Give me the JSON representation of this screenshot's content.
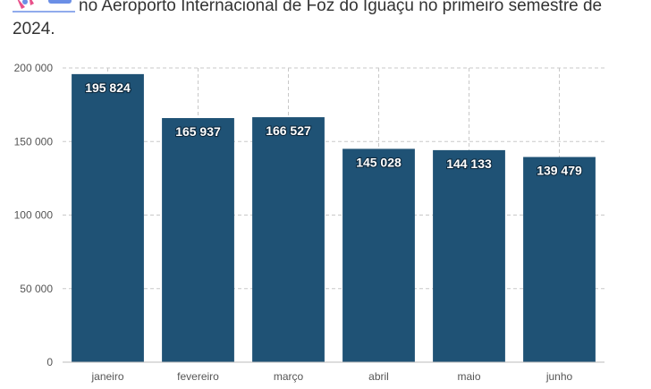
{
  "title": {
    "text": "no Aeroporto Internacional de Foz do Iguaçu no primeiro semestre de 2024."
  },
  "colors": {
    "bar": "#1f5275",
    "grid": "#c8c8c8",
    "icon_pink": "#e8508a",
    "icon_blue": "#6b8fe6"
  },
  "chart_data": {
    "type": "bar",
    "categories": [
      "janeiro",
      "fevereiro",
      "março",
      "abril",
      "maio",
      "junho"
    ],
    "values": [
      195824,
      165937,
      166527,
      145028,
      144133,
      139479
    ],
    "value_labels": [
      "195 824",
      "165 937",
      "166 527",
      "145 028",
      "144 133",
      "139 479"
    ],
    "yticks": [
      0,
      50000,
      100000,
      150000,
      200000
    ],
    "ytick_labels": [
      "0",
      "50 000",
      "100 000",
      "150 000",
      "200 000"
    ],
    "ylim": [
      0,
      200000
    ],
    "grid": true
  }
}
